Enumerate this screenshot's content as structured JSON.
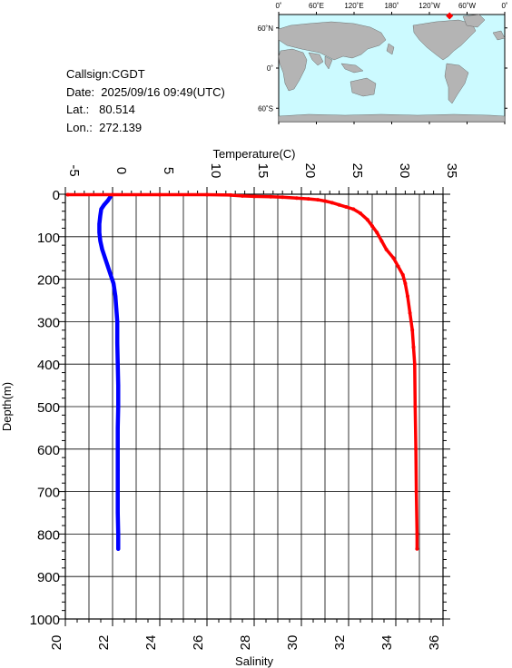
{
  "station": {
    "callsign": "Callsign:CGDT",
    "date": "Date:  2025/09/16 09:49(UTC)",
    "lat": "Lat.:   80.514",
    "lon": "Lon.:  272.139"
  },
  "map": {
    "top_ticks": [
      "0˚",
      "60˚E",
      "120˚E",
      "180˚",
      "120˚W",
      "60˚W",
      "0˚"
    ],
    "left_ticks": [
      "60˚N",
      "0˚",
      "60˚S"
    ],
    "ocean_color": "#ccfaff",
    "land_color": "#b4b4b4",
    "marker_color": "#ff0000",
    "marker": {
      "lat": 80.514,
      "lon": 272.139
    }
  },
  "chart_data": {
    "type": "scatter",
    "top_axis": {
      "label": "Temperature(C)",
      "range": [
        -5,
        35
      ],
      "ticks": [
        -5,
        0,
        5,
        10,
        15,
        20,
        25,
        30,
        35
      ]
    },
    "bottom_axis": {
      "label": "Salinity",
      "range": [
        20,
        36
      ],
      "ticks": [
        20,
        22,
        24,
        26,
        28,
        30,
        32,
        34,
        36
      ]
    },
    "y_axis": {
      "label": "Depth(m)",
      "range": [
        0,
        1000
      ],
      "inverted": true,
      "ticks": [
        0,
        100,
        200,
        300,
        400,
        500,
        600,
        700,
        800,
        900,
        1000
      ]
    },
    "grid": true,
    "series": [
      {
        "color": "#0000ff",
        "axis": "top",
        "points": [
          [
            -0.2,
            5
          ],
          [
            -0.5,
            15
          ],
          [
            -0.9,
            25
          ],
          [
            -1.2,
            35
          ],
          [
            -1.3,
            50
          ],
          [
            -1.4,
            70
          ],
          [
            -1.4,
            90
          ],
          [
            -1.3,
            110
          ],
          [
            -1.1,
            130
          ],
          [
            -0.8,
            150
          ],
          [
            -0.5,
            170
          ],
          [
            -0.2,
            190
          ],
          [
            0.1,
            210
          ],
          [
            0.3,
            240
          ],
          [
            0.4,
            270
          ],
          [
            0.5,
            300
          ],
          [
            0.5,
            350
          ],
          [
            0.55,
            400
          ],
          [
            0.6,
            450
          ],
          [
            0.6,
            500
          ],
          [
            0.55,
            550
          ],
          [
            0.55,
            600
          ],
          [
            0.55,
            650
          ],
          [
            0.55,
            700
          ],
          [
            0.55,
            750
          ],
          [
            0.6,
            800
          ],
          [
            0.6,
            835
          ]
        ]
      },
      {
        "color": "#ff0000",
        "axis": "bottom",
        "points": [
          [
            20.1,
            1
          ],
          [
            22.0,
            1
          ],
          [
            24.0,
            1
          ],
          [
            26.0,
            1
          ],
          [
            27.0,
            2
          ],
          [
            27.5,
            4
          ],
          [
            28.0,
            5
          ],
          [
            28.7,
            6
          ],
          [
            29.2,
            7
          ],
          [
            29.8,
            9
          ],
          [
            30.3,
            11
          ],
          [
            30.7,
            13
          ],
          [
            31.0,
            16
          ],
          [
            31.3,
            20
          ],
          [
            31.6,
            25
          ],
          [
            31.9,
            30
          ],
          [
            32.2,
            35
          ],
          [
            32.5,
            45
          ],
          [
            32.8,
            60
          ],
          [
            33.0,
            75
          ],
          [
            33.2,
            90
          ],
          [
            33.4,
            110
          ],
          [
            33.6,
            130
          ],
          [
            33.9,
            150
          ],
          [
            34.1,
            170
          ],
          [
            34.3,
            190
          ],
          [
            34.4,
            210
          ],
          [
            34.5,
            240
          ],
          [
            34.6,
            280
          ],
          [
            34.7,
            320
          ],
          [
            34.75,
            360
          ],
          [
            34.8,
            400
          ],
          [
            34.82,
            500
          ],
          [
            34.85,
            600
          ],
          [
            34.87,
            700
          ],
          [
            34.9,
            800
          ],
          [
            34.9,
            835
          ]
        ]
      }
    ]
  }
}
